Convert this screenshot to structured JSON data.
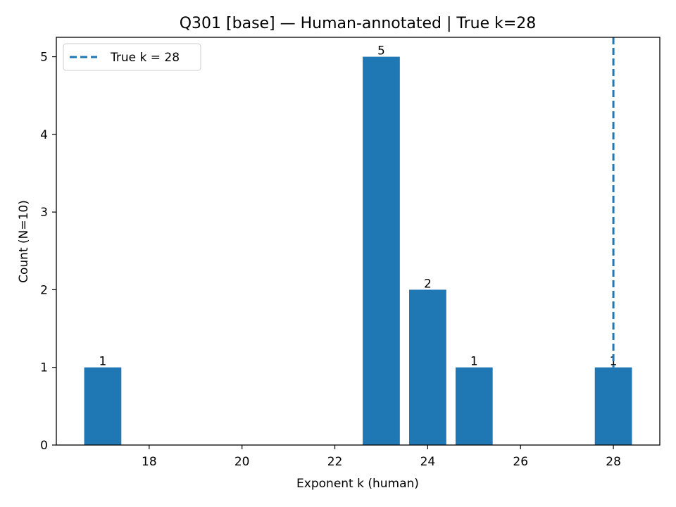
{
  "chart_data": {
    "type": "bar",
    "title": "Q301 [base] — Human-annotated | True k=28",
    "xlabel": "Exponent k (human)",
    "ylabel": "Count (N=10)",
    "x": [
      17,
      23,
      24,
      25,
      28
    ],
    "values": [
      1,
      5,
      2,
      1,
      1
    ],
    "bar_labels": [
      "1",
      "5",
      "2",
      "1",
      "1"
    ],
    "bar_width": 0.8,
    "xlim": [
      16.0,
      29.0
    ],
    "ylim": [
      0,
      5.25
    ],
    "xticks": [
      18,
      20,
      22,
      24,
      26,
      28
    ],
    "yticks": [
      0,
      1,
      2,
      3,
      4,
      5
    ],
    "reference_line": {
      "x": 28,
      "label": "True k = 28",
      "style": "dashed"
    },
    "legend": {
      "position": "top-left",
      "entries": [
        "True k = 28"
      ]
    },
    "grid": false,
    "colors": {
      "bar": "#1f77b4",
      "line": "#1f77b4"
    }
  }
}
